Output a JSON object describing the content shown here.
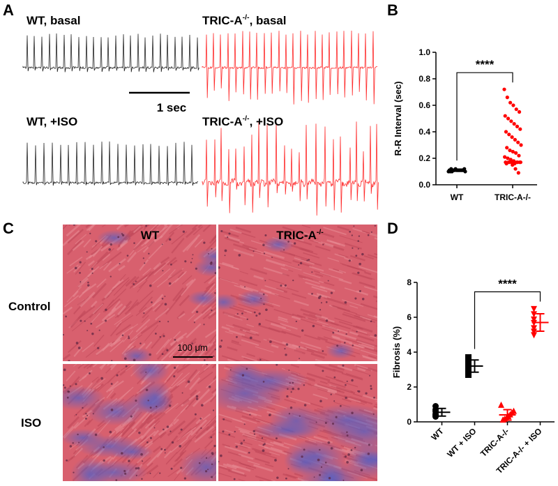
{
  "panel_labels": [
    "A",
    "B",
    "C",
    "D"
  ],
  "traces": [
    {
      "label": "WT, basal"
    },
    {
      "label": "TRIC-A",
      "sup": "-/-",
      "suffix": ", basal"
    },
    {
      "label": "WT, +ISO"
    },
    {
      "label": "TRIC-A",
      "sup": "-/-",
      "suffix": ", +ISO"
    }
  ],
  "trace_scale_bar": "1 sec",
  "histology": {
    "columns": [
      {
        "label": "WT"
      },
      {
        "label": "TRIC-A",
        "sup": "-/-"
      }
    ],
    "rows": [
      "Control",
      "ISO"
    ],
    "scale_bar": "100 μm"
  },
  "chart_data": [
    {
      "type": "strip",
      "y_label": "R-R Interval (sec)",
      "categories": [
        "WT",
        "TRIC-A-/-"
      ],
      "colors": [
        "#000000",
        "#ff0000"
      ],
      "markers": [
        "circle",
        "circle"
      ],
      "values": [
        [
          0.1,
          0.11,
          0.11,
          0.11,
          0.12,
          0.11,
          0.1,
          0.11,
          0.11,
          0.12,
          0.11,
          0.11,
          0.1,
          0.11,
          0.12,
          0.11,
          0.11,
          0.1,
          0.11,
          0.11
        ],
        [
          0.72,
          0.66,
          0.62,
          0.6,
          0.57,
          0.55,
          0.52,
          0.5,
          0.48,
          0.46,
          0.44,
          0.42,
          0.4,
          0.38,
          0.36,
          0.34,
          0.32,
          0.3,
          0.28,
          0.26,
          0.25,
          0.24,
          0.22,
          0.21,
          0.2,
          0.19,
          0.18,
          0.17,
          0.17,
          0.17,
          0.17,
          0.17,
          0.16,
          0.17,
          0.17,
          0.16,
          0.17,
          0.15,
          0.12,
          0.09
        ]
      ],
      "ylim": [
        0,
        1.0
      ],
      "yticks": [
        {
          "value": 0,
          "label": "0.0"
        },
        0.2,
        0.4,
        0.6,
        0.8,
        {
          "value": 1,
          "label": "1.0"
        }
      ],
      "annotation": "****",
      "annotation_between": [
        0,
        1
      ]
    },
    {
      "type": "strip",
      "y_label": "Fibrosis (%)",
      "categories": [
        "WT",
        "WT + ISO",
        "TRIC-A-/-",
        "TRIC-A-/- + ISO"
      ],
      "colors": [
        "#000000",
        "#000000",
        "#ff0000",
        "#ff0000"
      ],
      "markers": [
        "circle",
        "square",
        "triangle-up",
        "triangle-down"
      ],
      "values": [
        [
          0.9,
          0.7,
          0.6,
          0.45,
          0.4,
          0.35,
          0.3
        ],
        [
          3.7,
          3.5,
          3.3,
          3.2,
          3.1,
          2.9,
          2.7
        ],
        [
          0.95,
          0.6,
          0.5,
          0.4,
          0.3,
          0.2,
          0.15,
          0.1
        ],
        [
          6.5,
          6.2,
          5.9,
          5.7,
          5.4,
          5.2,
          5.0
        ]
      ],
      "means": [
        0.55,
        3.2,
        0.4,
        5.7
      ],
      "sds": [
        0.22,
        0.35,
        0.3,
        0.5
      ],
      "ylim": [
        0,
        8
      ],
      "yticks": [
        0,
        2,
        4,
        6,
        8
      ],
      "annotation": "****",
      "annotation_between": [
        1,
        3
      ]
    }
  ]
}
